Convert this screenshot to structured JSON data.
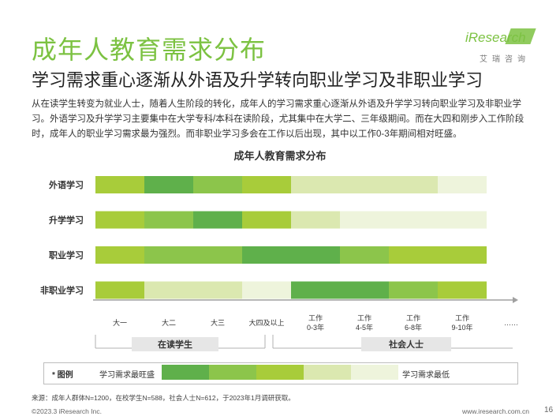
{
  "page": {
    "title": "成年人教育需求分布",
    "subtitle": "学习需求重心逐渐从外语及升学转向职业学习及非职业学习",
    "intro": "从在读学生转变为就业人士，随着人生阶段的转化，成年人的学习需求重心逐渐从外语及升学学习转向职业学习及非职业学习。外语学习及升学学习主要集中在大学专科/本科在读阶段，尤其集中在大学二、三年级期间。而在大四和刚步入工作阶段时，成年人的职业学习需求最为强烈。而非职业学习多会在工作以后出现，其中以工作0-3年期间相对旺盛。",
    "logo": {
      "brand": "iResearch",
      "sub": "艾瑞咨询"
    },
    "source": "来源：成年人群体N=1200，在校学生N=588，社会人士N=612，于2023年1月调研获取。",
    "copyright": "©2023.3 iResearch Inc.",
    "website": "www.iresearch.com.cn",
    "page_number": "16"
  },
  "legend": {
    "head": "* 图例",
    "high_label": "学习需求最旺盛",
    "low_label": "学习需求最低",
    "colors": [
      "#5fb04b",
      "#8cc54b",
      "#a8cc3a",
      "#dbe8b0",
      "#eef4dc"
    ]
  },
  "chart_data": {
    "type": "heatmap",
    "title": "成年人教育需求分布",
    "columns": [
      "大一",
      "大二",
      "大三",
      "大四及以上",
      "工作\n0-3年",
      "工作\n4-5年",
      "工作\n6-8年",
      "工作\n9-10年",
      "……"
    ],
    "groups": [
      {
        "label": "在读学生",
        "columns": [
          "大一",
          "大二",
          "大三",
          "大四及以上"
        ]
      },
      {
        "label": "社会人士",
        "columns": [
          "工作\n0-3年",
          "工作\n4-5年",
          "工作\n6-8年",
          "工作\n9-10年",
          "……"
        ]
      }
    ],
    "scale_note": "level 1 = 学习需求最旺盛, level 5 = 学习需求最低",
    "rows": [
      {
        "name": "外语学习",
        "levels": [
          3,
          1,
          2,
          3,
          4,
          4,
          4,
          5
        ]
      },
      {
        "name": "升学学习",
        "levels": [
          3,
          2,
          1,
          3,
          4,
          5,
          5,
          5
        ]
      },
      {
        "name": "职业学习",
        "levels": [
          3,
          2,
          2,
          1,
          1,
          2,
          3,
          3
        ]
      },
      {
        "name": "非职业学习",
        "levels": [
          3,
          4,
          4,
          5,
          1,
          1,
          2,
          3
        ]
      }
    ]
  }
}
